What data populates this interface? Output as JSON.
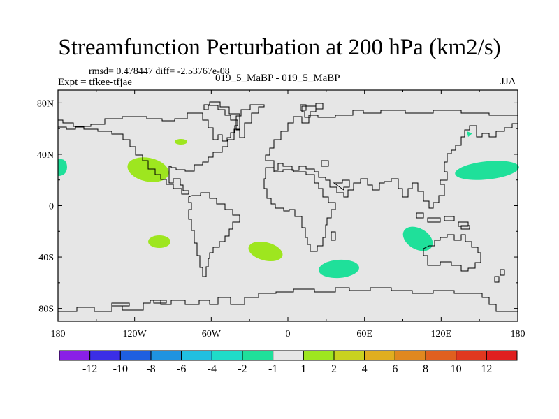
{
  "title": "Streamfunction Perturbation at 200 hPa (km2/s)",
  "stats_text": "rmsd= 0.478447 diff= -2.53767e-08",
  "experiment_text": "Expt = tfkee-tfjae",
  "case_text": "019_5_MaBP - 019_5_MaBP",
  "season_text": "JJA",
  "x_ticks": [
    "180",
    "120W",
    "60W",
    "0",
    "60E",
    "120E",
    "180"
  ],
  "y_ticks": [
    "80N",
    "40N",
    "0",
    "40S",
    "80S"
  ],
  "colorbar": {
    "labels": [
      "-12",
      "-10",
      "-8",
      "-6",
      "-4",
      "-2",
      "-1",
      "1",
      "2",
      "4",
      "6",
      "8",
      "10",
      "12"
    ],
    "colors": [
      "#8a1fe6",
      "#3b2ee6",
      "#1e5fe0",
      "#1f93e0",
      "#21bfe0",
      "#1fdcc8",
      "#1fe09a",
      "#e6e6e6",
      "#9ee61f",
      "#c9d21f",
      "#e0ae1f",
      "#e0881f",
      "#e0601f",
      "#e0381f",
      "#e01f1f"
    ]
  },
  "colors": {
    "ocean_land_fill": "#e6e6e6",
    "positive_anomaly": "#9ee61f",
    "negative_anomaly": "#1fe09a"
  }
}
